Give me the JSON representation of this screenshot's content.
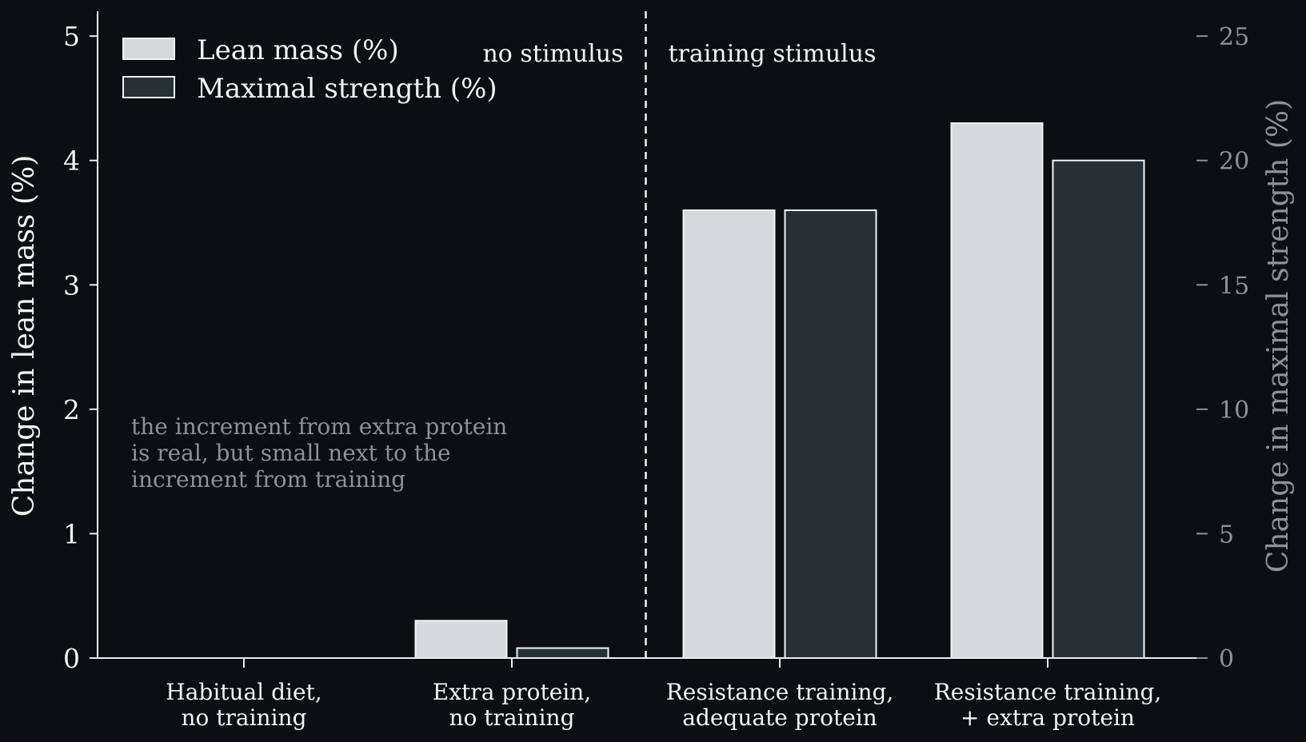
{
  "chart_data": {
    "type": "bar",
    "categories": [
      [
        "Habitual diet,",
        "no training"
      ],
      [
        "Extra protein,",
        "no training"
      ],
      [
        "Resistance training,",
        "adequate protein"
      ],
      [
        "Resistance training,",
        "+ extra protein"
      ]
    ],
    "series": [
      {
        "name": "Lean mass (%)",
        "axis": "left",
        "color": "#d3d9dc",
        "edgecolor": "#f2f4f5",
        "values": [
          0.0,
          0.3,
          3.6,
          4.3
        ]
      },
      {
        "name": "Maximal strength (%)",
        "axis": "right",
        "color": "#263038",
        "edgecolor": "#f2f4f5",
        "values": [
          0.0,
          0.4,
          18.0,
          20.0
        ]
      }
    ],
    "ylabel_left": "Change in lean mass (%)",
    "ylabel_right": "Change in maximal strength (%)",
    "ylim_left": [
      0,
      5.2
    ],
    "ylim_right": [
      0,
      26
    ],
    "yticks_left": [
      "0",
      "1",
      "2",
      "3",
      "4",
      "5"
    ],
    "yticks_right": [
      "0",
      "5",
      "10",
      "15",
      "20",
      "25"
    ],
    "divider": {
      "style": "dashed",
      "position": "between categories 2 and 3"
    },
    "region_labels": {
      "left": "no stimulus",
      "right": "training stimulus"
    },
    "annotation": [
      "the increment from extra protein",
      "is real, but small next to the",
      "increment from training"
    ],
    "legend_placement": "top-left",
    "grid": false
  },
  "colors": {
    "background": "#0b0f14",
    "axis": "#e8ecef",
    "muted": "#8b9298"
  }
}
